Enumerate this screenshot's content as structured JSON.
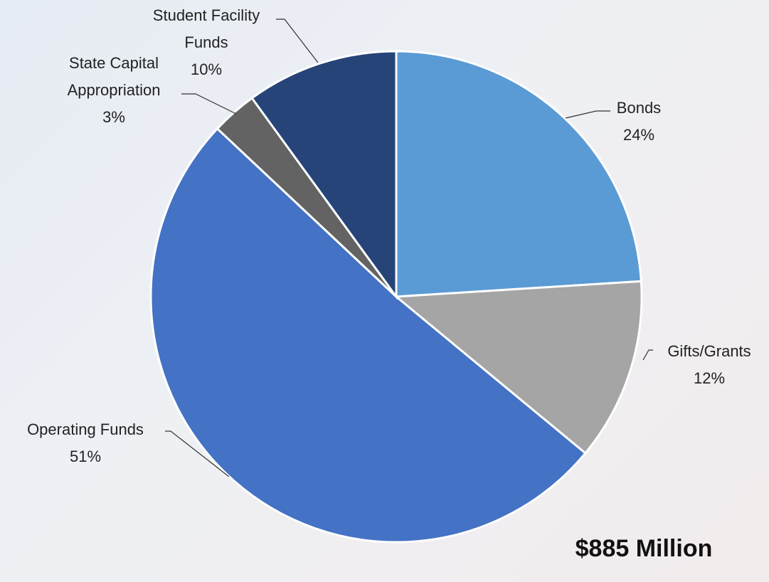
{
  "chart_data": {
    "type": "pie",
    "categories": [
      "Bonds",
      "Gifts/Grants",
      "Operating Funds",
      "State Capital Appropriation",
      "Student Facility Funds"
    ],
    "values": [
      24,
      12,
      51,
      3,
      10
    ],
    "value_labels": [
      "24%",
      "12%",
      "51%",
      "3%",
      "10%"
    ],
    "colors": [
      "#5b9bd5",
      "#a5a5a5",
      "#4472c4",
      "#636363",
      "#264478"
    ],
    "annotation": "$885 Million"
  }
}
